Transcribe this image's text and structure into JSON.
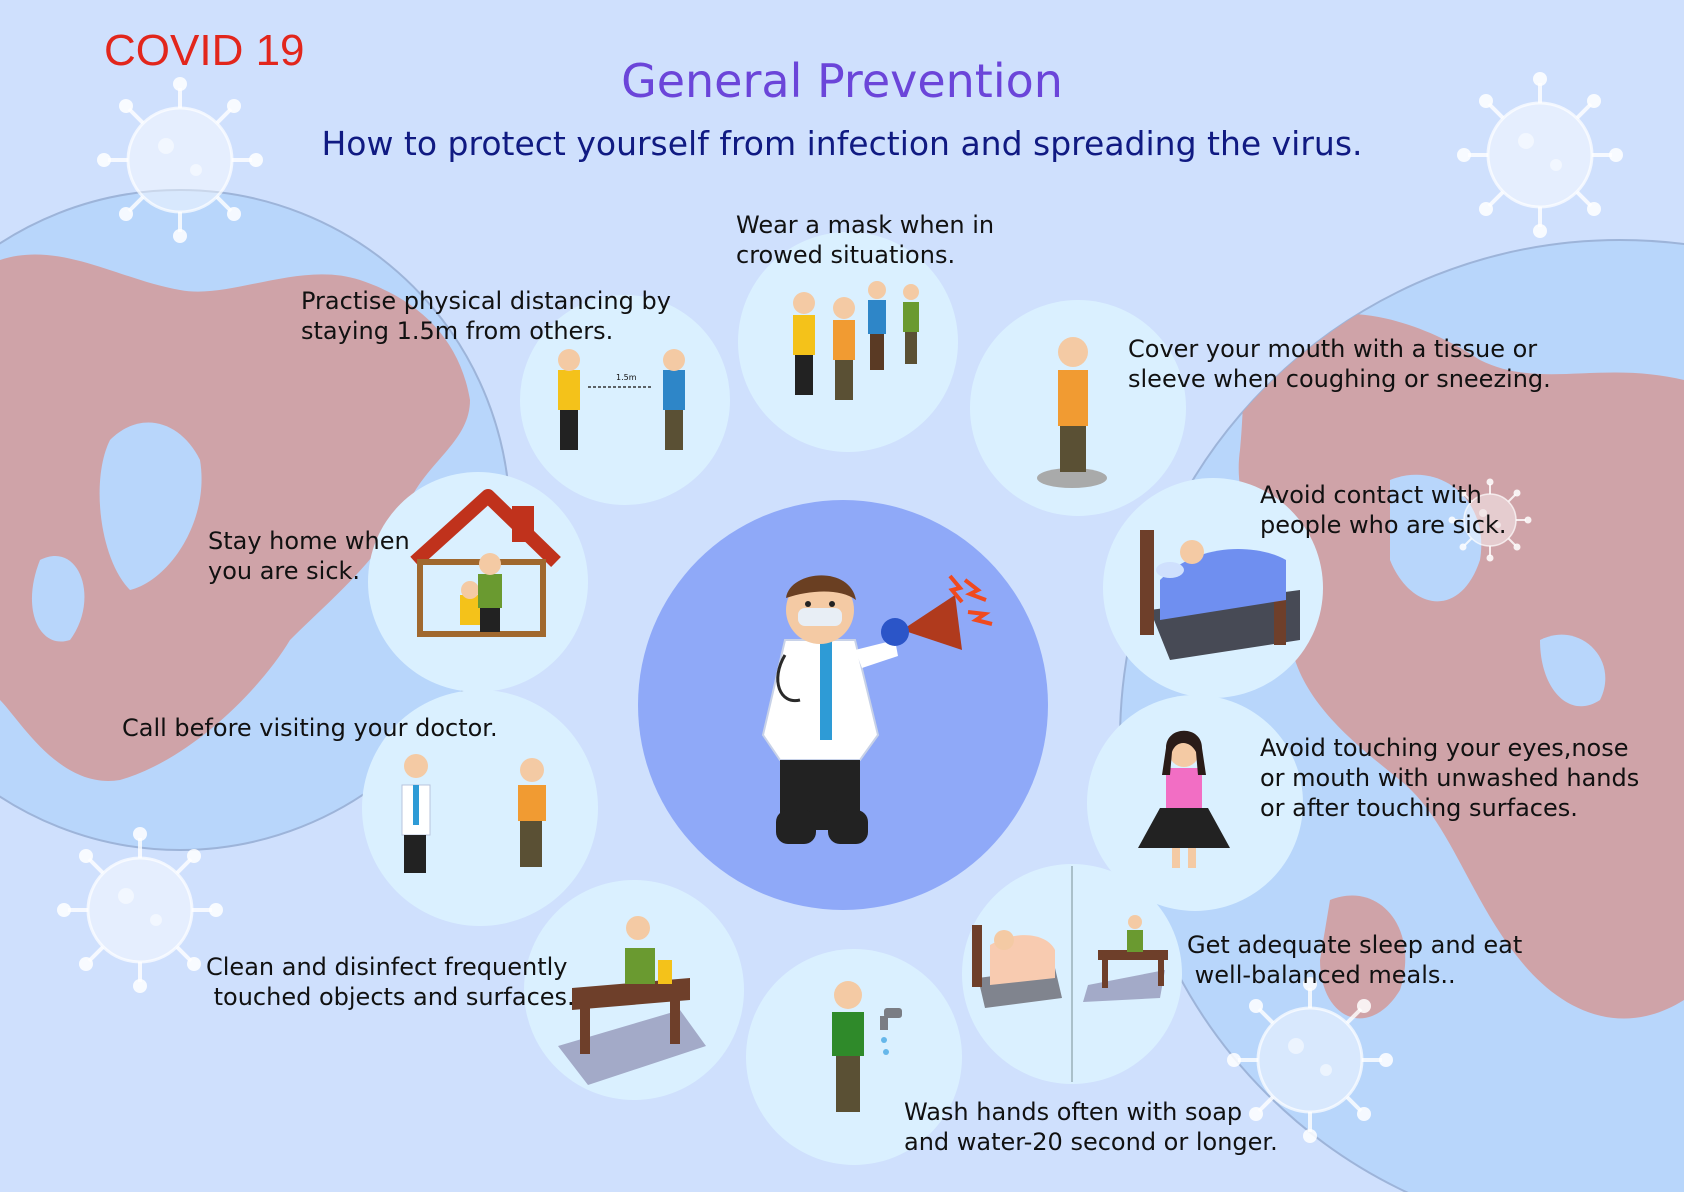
{
  "header": {
    "badge": "COVID 19",
    "title": "General Prevention",
    "subtitle": "How to protect yourself from infection and spreading the virus."
  },
  "tips": {
    "distancing": "Practise physical distancing by\nstaying 1.5m from others.",
    "distance_marker": "1.5m",
    "mask": "Wear a mask when in\ncrowed situations.",
    "cover": "Cover your mouth with a tissue or\nsleeve when coughing or sneezing.",
    "home": "Stay home when\nyou are sick.",
    "avoid_sick": "Avoid contact with\npeople who are sick.",
    "call_doctor": "Call before visiting your doctor.",
    "no_touch": "Avoid touching your eyes,nose\nor mouth with unwashed hands\nor after touching surfaces.",
    "clean": "Clean and disinfect frequently\n touched objects and surfaces.",
    "sleep_eat": "Get adequate sleep and eat\n well-balanced meals..",
    "wash": "Wash hands often with soap\nand water-20 second or longer."
  },
  "colors": {
    "background": "#cfe0fd",
    "badge": "#e2261c",
    "title": "#6b45d9",
    "subtitle": "#101a82",
    "globe_ocean": "#b8d6fb",
    "land": "#cfa3a8",
    "tip_circle": "#daf0ff",
    "center_circle": "#8fa9f8"
  },
  "icons": [
    "virus-icon",
    "globe-icon",
    "megaphone-icon",
    "house-icon",
    "bed-icon",
    "table-icon",
    "faucet-icon"
  ]
}
